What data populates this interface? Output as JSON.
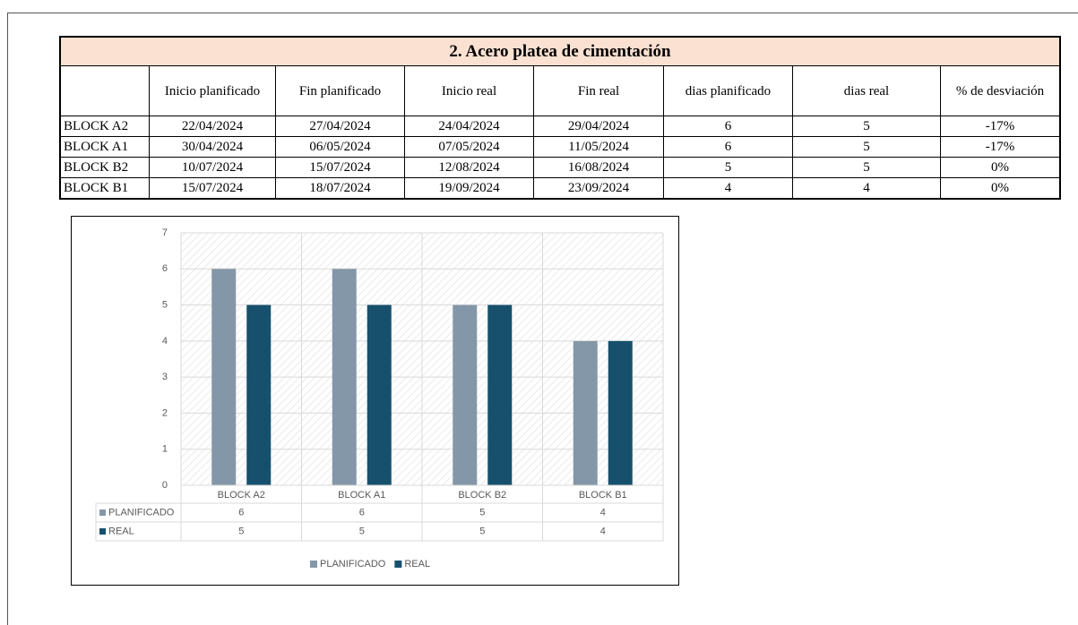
{
  "table": {
    "title": "2. Acero platea de cimentación",
    "header": [
      "",
      "Inicio planificado",
      "Fin planificado",
      "Inicio real",
      "Fin real",
      "dias planificado",
      "dias real",
      "% de desviación"
    ],
    "rows": [
      [
        "BLOCK A2",
        "22/04/2024",
        "27/04/2024",
        "24/04/2024",
        "29/04/2024",
        "6",
        "5",
        "-17%"
      ],
      [
        "BLOCK A1",
        "30/04/2024",
        "06/05/2024",
        "07/05/2024",
        "11/05/2024",
        "6",
        "5",
        "-17%"
      ],
      [
        "BLOCK B2",
        "10/07/2024",
        "15/07/2024",
        "12/08/2024",
        "16/08/2024",
        "5",
        "5",
        "0%"
      ],
      [
        "BLOCK B1",
        "15/07/2024",
        "18/07/2024",
        "19/09/2024",
        "23/09/2024",
        "4",
        "4",
        "0%"
      ]
    ]
  },
  "chart_data": {
    "type": "bar",
    "categories": [
      "BLOCK A2",
      "BLOCK A1",
      "BLOCK B2",
      "BLOCK B1"
    ],
    "series": [
      {
        "name": "PLANIFICADO",
        "color": "#8497a8",
        "values": [
          6,
          6,
          5,
          4
        ]
      },
      {
        "name": "REAL",
        "color": "#17506d",
        "values": [
          5,
          5,
          5,
          4
        ]
      }
    ],
    "ylim": [
      0,
      7
    ],
    "yticks": [
      0,
      1,
      2,
      3,
      4,
      5,
      6,
      7
    ],
    "grid": true,
    "legend": "bottom",
    "data_table": true
  }
}
